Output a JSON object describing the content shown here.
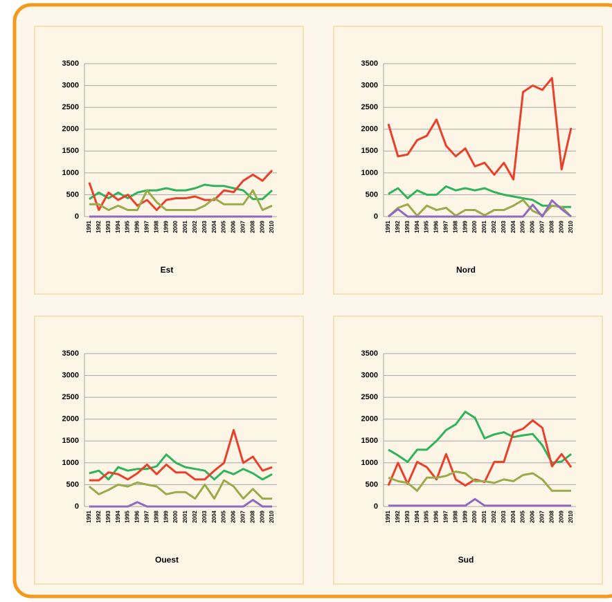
{
  "chart_data": [
    {
      "type": "line",
      "title": "Est",
      "categories": [
        "1991",
        "1992",
        "1993",
        "1994",
        "1995",
        "1996",
        "1997",
        "1998",
        "1999",
        "2000",
        "2001",
        "2002",
        "2003",
        "2004",
        "2005",
        "2006",
        "2007",
        "2008",
        "2009",
        "2010"
      ],
      "series": [
        {
          "color": "#2fb35b",
          "values": [
            400,
            550,
            420,
            550,
            420,
            550,
            600,
            600,
            650,
            600,
            600,
            650,
            730,
            700,
            700,
            650,
            600,
            400,
            400,
            600
          ]
        },
        {
          "color": "#e8402a",
          "values": [
            780,
            150,
            550,
            380,
            500,
            250,
            380,
            150,
            380,
            420,
            420,
            460,
            380,
            380,
            600,
            560,
            820,
            960,
            820,
            1060
          ]
        },
        {
          "color": "#9bab4b",
          "values": [
            280,
            280,
            150,
            250,
            150,
            150,
            600,
            330,
            150,
            150,
            150,
            150,
            250,
            420,
            280,
            280,
            280,
            600,
            150,
            250
          ]
        },
        {
          "color": "#8e6bbf",
          "values": [
            0,
            0,
            0,
            0,
            0,
            0,
            0,
            0,
            0,
            0,
            0,
            0,
            0,
            0,
            0,
            0,
            0,
            0,
            0,
            0
          ]
        }
      ],
      "ylim": [
        0,
        3500
      ],
      "yticks": [
        0,
        500,
        1000,
        1500,
        2000,
        2500,
        3000,
        3500
      ],
      "grid": true
    },
    {
      "type": "line",
      "title": "Nord",
      "categories": [
        "1991",
        "1992",
        "1993",
        "1994",
        "1995",
        "1996",
        "1997",
        "1998",
        "1999",
        "2000",
        "2001",
        "2002",
        "2003",
        "2004",
        "2005",
        "2006",
        "2007",
        "2008",
        "2009",
        "2010"
      ],
      "series": [
        {
          "color": "#2fb35b",
          "values": [
            520,
            650,
            420,
            600,
            500,
            500,
            690,
            600,
            650,
            600,
            650,
            560,
            500,
            460,
            420,
            380,
            250,
            250,
            220,
            220
          ]
        },
        {
          "color": "#e8402a",
          "values": [
            2120,
            1380,
            1420,
            1750,
            1850,
            2220,
            1620,
            1380,
            1560,
            1150,
            1230,
            960,
            1230,
            850,
            2850,
            3000,
            2900,
            3170,
            1080,
            2030
          ]
        },
        {
          "color": "#9bab4b",
          "values": [
            0,
            200,
            280,
            20,
            250,
            150,
            200,
            20,
            150,
            150,
            30,
            150,
            150,
            250,
            380,
            130,
            30,
            250,
            220,
            0
          ]
        },
        {
          "color": "#8e6bbf",
          "values": [
            0,
            170,
            0,
            0,
            0,
            0,
            0,
            0,
            0,
            0,
            0,
            0,
            0,
            0,
            0,
            270,
            0,
            370,
            170,
            0
          ]
        }
      ],
      "ylim": [
        0,
        3500
      ],
      "yticks": [
        0,
        500,
        1000,
        1500,
        2000,
        2500,
        3000,
        3500
      ],
      "grid": true
    },
    {
      "type": "line",
      "title": "Ouest",
      "categories": [
        "1991",
        "1992",
        "1993",
        "1994",
        "1995",
        "1996",
        "1997",
        "1998",
        "1999",
        "2000",
        "2001",
        "2002",
        "2003",
        "2004",
        "2005",
        "2006",
        "2007",
        "2008",
        "2009",
        "2010"
      ],
      "series": [
        {
          "color": "#2fb35b",
          "values": [
            760,
            820,
            620,
            900,
            820,
            860,
            860,
            920,
            1190,
            1000,
            900,
            860,
            820,
            620,
            820,
            740,
            860,
            760,
            620,
            740
          ]
        },
        {
          "color": "#e8402a",
          "values": [
            600,
            600,
            780,
            740,
            620,
            760,
            960,
            740,
            960,
            780,
            780,
            620,
            620,
            820,
            1000,
            1750,
            1000,
            1140,
            820,
            900
          ]
        },
        {
          "color": "#9bab4b",
          "values": [
            460,
            280,
            380,
            500,
            460,
            550,
            500,
            460,
            280,
            330,
            330,
            180,
            500,
            180,
            600,
            460,
            180,
            400,
            180,
            180
          ]
        },
        {
          "color": "#8e6bbf",
          "values": [
            0,
            0,
            0,
            0,
            0,
            100,
            0,
            0,
            0,
            0,
            0,
            0,
            0,
            0,
            0,
            0,
            0,
            150,
            0,
            0
          ]
        }
      ],
      "ylim": [
        0,
        3500
      ],
      "yticks": [
        0,
        500,
        1000,
        1500,
        2000,
        2500,
        3000,
        3500
      ],
      "grid": true
    },
    {
      "type": "line",
      "title": "Sud",
      "categories": [
        "1991",
        "1992",
        "1993",
        "1994",
        "1995",
        "1996",
        "1997",
        "1998",
        "1999",
        "2000",
        "2001",
        "2002",
        "2003",
        "2004",
        "2005",
        "2006",
        "2007",
        "2008",
        "2009",
        "2010"
      ],
      "series": [
        {
          "color": "#2fb35b",
          "values": [
            1300,
            1170,
            1020,
            1300,
            1300,
            1500,
            1750,
            1880,
            2170,
            2030,
            1560,
            1650,
            1700,
            1590,
            1630,
            1660,
            1400,
            1000,
            1030,
            1200
          ]
        },
        {
          "color": "#e8402a",
          "values": [
            480,
            1000,
            520,
            1020,
            900,
            620,
            1200,
            620,
            480,
            620,
            560,
            1020,
            1020,
            1700,
            1780,
            1970,
            1800,
            920,
            1200,
            900
          ]
        },
        {
          "color": "#9bab4b",
          "values": [
            660,
            580,
            540,
            360,
            660,
            660,
            700,
            800,
            760,
            580,
            580,
            540,
            620,
            580,
            720,
            760,
            620,
            360,
            360,
            360
          ]
        },
        {
          "color": "#8e6bbf",
          "values": [
            20,
            20,
            20,
            20,
            20,
            20,
            20,
            20,
            20,
            170,
            20,
            20,
            20,
            20,
            20,
            20,
            20,
            20,
            20,
            20
          ]
        }
      ],
      "ylim": [
        0,
        3500
      ],
      "yticks": [
        0,
        500,
        1000,
        1500,
        2000,
        2500,
        3000,
        3500
      ],
      "grid": true
    }
  ]
}
